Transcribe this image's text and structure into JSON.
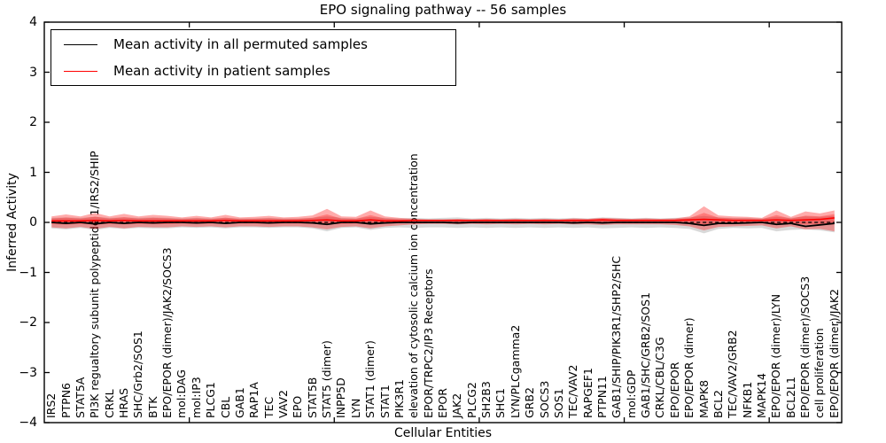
{
  "figure": {
    "title": "EPO signaling pathway -- 56 samples"
  },
  "legend": {
    "entries": [
      {
        "label": "Mean activity in all permuted samples",
        "color": "#000000"
      },
      {
        "label": "Mean activity in patient samples",
        "color": "#ff0000"
      }
    ]
  },
  "chart_data": {
    "type": "line",
    "title": "EPO signaling pathway -- 56 samples",
    "xlabel": "Cellular Entities",
    "ylabel": "Inferred Activity",
    "ylim": [
      -4,
      4
    ],
    "yticks": [
      4,
      3,
      2,
      1,
      0,
      -1,
      -2,
      -3,
      -4
    ],
    "xticks_major": [
      10,
      20,
      30,
      40,
      50
    ],
    "grid": false,
    "legend_position": "upper left",
    "zero_line": 0,
    "categories": [
      "IRS2",
      "PTPN6",
      "STAT5A",
      "PI3K regualtory subunit polypeptide 1/IRS2/SHIP",
      "CRKL",
      "HRAS",
      "SHC/Grb2/SOS1",
      "BTK",
      "EPO/EPOR (dimer)/JAK2/SOCS3",
      "mol:DAG",
      "mol:IP3",
      "PLCG1",
      "CBL",
      "GAB1",
      "RAP1A",
      "TEC",
      "VAV2",
      "EPO",
      "STAT5B",
      "STAT5 (dimer)",
      "INPP5D",
      "LYN",
      "STAT1 (dimer)",
      "STAT1",
      "PIK3R1",
      "elevation of cytosolic calcium ion concentration",
      "EPOR/TRPC2/IP3 Receptors",
      "EPOR",
      "JAK2",
      "PLCG2",
      "SH2B3",
      "SHC1",
      "LYN/PLCgamma2",
      "GRB2",
      "SOCS3",
      "SOS1",
      "TEC/VAV2",
      "RAPGEF1",
      "PTPN11",
      "GAB1/SHIP/PIK3R1/SHP2/SHC",
      "mol:GDP",
      "GAB1/SHC/GRB2/SOS1",
      "CRKL/CBL/C3G",
      "EPO/EPOR",
      "EPO/EPOR (dimer)",
      "MAPK8",
      "BCL2",
      "TEC/VAV2/GRB2",
      "NFKB1",
      "MAPK14",
      "EPO/EPOR (dimer)/LYN",
      "BCL2L1",
      "EPO/EPOR (dimer)/SOCS3",
      "cell proliferation",
      "EPO/EPOR (dimer)/JAK2"
    ],
    "series": [
      {
        "name": "Mean activity in all permuted samples",
        "color": "#000000",
        "style": "solid",
        "values": [
          0,
          -0.02,
          0,
          -0.03,
          0,
          -0.02,
          0,
          -0.01,
          0,
          0,
          -0.01,
          0,
          -0.02,
          0,
          0,
          -0.01,
          0,
          0,
          -0.01,
          -0.04,
          0,
          0,
          -0.03,
          -0.01,
          0,
          0,
          0,
          0,
          -0.01,
          0,
          0,
          0,
          0,
          0,
          0,
          0,
          -0.01,
          0,
          -0.01,
          0,
          0,
          0,
          0,
          0,
          -0.02,
          -0.06,
          -0.02,
          -0.02,
          -0.01,
          0,
          -0.04,
          -0.02,
          -0.08,
          -0.05,
          -0.02
        ]
      },
      {
        "name": "Mean activity in patient samples",
        "color": "#ff0000",
        "style": "solid",
        "values": [
          0.03,
          0.03,
          0.03,
          0.04,
          0.03,
          0.04,
          0.03,
          0.03,
          0.03,
          0.03,
          0.03,
          0.03,
          0.04,
          0.03,
          0.03,
          0.03,
          0.03,
          0.03,
          0.04,
          0.05,
          0.03,
          0.03,
          0.05,
          0.03,
          0.03,
          0.04,
          0.04,
          0.04,
          0.04,
          0.04,
          0.04,
          0.04,
          0.04,
          0.04,
          0.04,
          0.04,
          0.04,
          0.04,
          0.05,
          0.04,
          0.04,
          0.04,
          0.04,
          0.04,
          0.05,
          0.06,
          0.05,
          0.04,
          0.04,
          0.04,
          0.05,
          0.04,
          0.05,
          0.06,
          0.09
        ]
      }
    ],
    "bands": [
      {
        "name": "permuted-range",
        "color": "#000000",
        "opacity": 0.15,
        "upper": [
          0.09,
          0.1,
          0.09,
          0.11,
          0.09,
          0.1,
          0.09,
          0.1,
          0.09,
          0.08,
          0.09,
          0.08,
          0.09,
          0.08,
          0.08,
          0.09,
          0.08,
          0.08,
          0.09,
          0.12,
          0.09,
          0.08,
          0.11,
          0.09,
          0.08,
          0.09,
          0.08,
          0.09,
          0.1,
          0.08,
          0.09,
          0.08,
          0.09,
          0.08,
          0.09,
          0.08,
          0.09,
          0.08,
          0.1,
          0.09,
          0.08,
          0.09,
          0.08,
          0.09,
          0.1,
          0.13,
          0.1,
          0.09,
          0.09,
          0.08,
          0.11,
          0.09,
          0.12,
          0.11,
          0.13
        ],
        "lower": [
          -0.12,
          -0.14,
          -0.11,
          -0.15,
          -0.11,
          -0.13,
          -0.11,
          -0.12,
          -0.12,
          -0.1,
          -0.11,
          -0.1,
          -0.12,
          -0.1,
          -0.1,
          -0.11,
          -0.1,
          -0.1,
          -0.12,
          -0.18,
          -0.11,
          -0.1,
          -0.15,
          -0.11,
          -0.1,
          -0.11,
          -0.1,
          -0.1,
          -0.11,
          -0.1,
          -0.11,
          -0.1,
          -0.11,
          -0.1,
          -0.11,
          -0.1,
          -0.11,
          -0.1,
          -0.12,
          -0.11,
          -0.1,
          -0.11,
          -0.1,
          -0.11,
          -0.13,
          -0.22,
          -0.13,
          -0.11,
          -0.12,
          -0.11,
          -0.18,
          -0.15,
          -0.14,
          -0.16,
          -0.2
        ]
      },
      {
        "name": "patient-range",
        "color": "#ff0000",
        "opacity": 0.33,
        "upper": [
          0.12,
          0.16,
          0.12,
          0.19,
          0.12,
          0.17,
          0.12,
          0.15,
          0.13,
          0.1,
          0.13,
          0.1,
          0.15,
          0.1,
          0.11,
          0.13,
          0.1,
          0.11,
          0.14,
          0.27,
          0.12,
          0.11,
          0.24,
          0.12,
          0.09,
          0.07,
          0.06,
          0.06,
          0.07,
          0.06,
          0.07,
          0.06,
          0.07,
          0.06,
          0.07,
          0.06,
          0.08,
          0.07,
          0.09,
          0.08,
          0.07,
          0.08,
          0.07,
          0.08,
          0.12,
          0.32,
          0.14,
          0.12,
          0.11,
          0.09,
          0.24,
          0.11,
          0.22,
          0.18,
          0.24
        ],
        "lower": [
          -0.1,
          -0.12,
          -0.09,
          -0.13,
          -0.09,
          -0.12,
          -0.09,
          -0.1,
          -0.1,
          -0.08,
          -0.09,
          -0.08,
          -0.1,
          -0.08,
          -0.08,
          -0.09,
          -0.08,
          -0.08,
          -0.1,
          -0.14,
          -0.09,
          -0.08,
          -0.12,
          -0.08,
          -0.06,
          -0.04,
          -0.03,
          -0.03,
          -0.04,
          -0.03,
          -0.04,
          -0.03,
          -0.04,
          -0.03,
          -0.04,
          -0.03,
          -0.04,
          -0.04,
          -0.05,
          -0.04,
          -0.04,
          -0.04,
          -0.04,
          -0.05,
          -0.08,
          -0.16,
          -0.09,
          -0.08,
          -0.07,
          -0.06,
          -0.12,
          -0.08,
          -0.14,
          -0.13,
          -0.18
        ]
      }
    ]
  }
}
